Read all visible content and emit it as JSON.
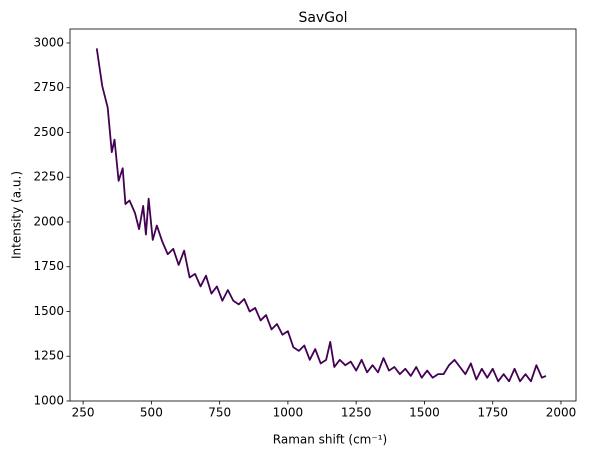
{
  "chart_data": {
    "type": "line",
    "title": "SavGol",
    "xlabel": "Raman shift (cm⁻¹)",
    "ylabel": "Intensity (a.u.)",
    "xlim": [
      202,
      2055
    ],
    "ylim": [
      1000,
      3078
    ],
    "xticks": [
      250,
      500,
      750,
      1000,
      1250,
      1500,
      1750,
      2000
    ],
    "yticks": [
      1000,
      1250,
      1500,
      1750,
      2000,
      2250,
      2500,
      2750,
      3000
    ],
    "series": [
      {
        "name": "SavGol",
        "color": "#440154",
        "x": [
          300,
          320,
          340,
          355,
          365,
          380,
          395,
          405,
          420,
          440,
          455,
          470,
          480,
          490,
          505,
          520,
          540,
          560,
          580,
          600,
          620,
          640,
          660,
          680,
          700,
          720,
          740,
          760,
          780,
          800,
          820,
          840,
          860,
          880,
          900,
          920,
          940,
          960,
          980,
          1000,
          1020,
          1040,
          1060,
          1080,
          1100,
          1120,
          1140,
          1155,
          1170,
          1190,
          1210,
          1230,
          1250,
          1270,
          1290,
          1310,
          1330,
          1350,
          1370,
          1390,
          1410,
          1430,
          1450,
          1470,
          1490,
          1510,
          1530,
          1550,
          1570,
          1590,
          1610,
          1630,
          1650,
          1670,
          1690,
          1710,
          1730,
          1750,
          1770,
          1790,
          1810,
          1830,
          1850,
          1870,
          1890,
          1910,
          1930,
          1945
        ],
        "values": [
          2970,
          2760,
          2640,
          2390,
          2460,
          2230,
          2300,
          2100,
          2120,
          2050,
          1960,
          2090,
          1930,
          2130,
          1900,
          1980,
          1890,
          1820,
          1850,
          1760,
          1840,
          1690,
          1710,
          1640,
          1700,
          1600,
          1640,
          1560,
          1620,
          1560,
          1540,
          1570,
          1500,
          1520,
          1450,
          1480,
          1400,
          1430,
          1370,
          1390,
          1300,
          1280,
          1310,
          1230,
          1290,
          1210,
          1230,
          1330,
          1190,
          1230,
          1200,
          1220,
          1170,
          1230,
          1160,
          1200,
          1160,
          1240,
          1170,
          1190,
          1150,
          1180,
          1140,
          1190,
          1130,
          1170,
          1130,
          1150,
          1150,
          1200,
          1230,
          1190,
          1150,
          1210,
          1120,
          1180,
          1130,
          1180,
          1110,
          1150,
          1110,
          1180,
          1110,
          1150,
          1110,
          1200,
          1130,
          1140
        ]
      }
    ]
  }
}
